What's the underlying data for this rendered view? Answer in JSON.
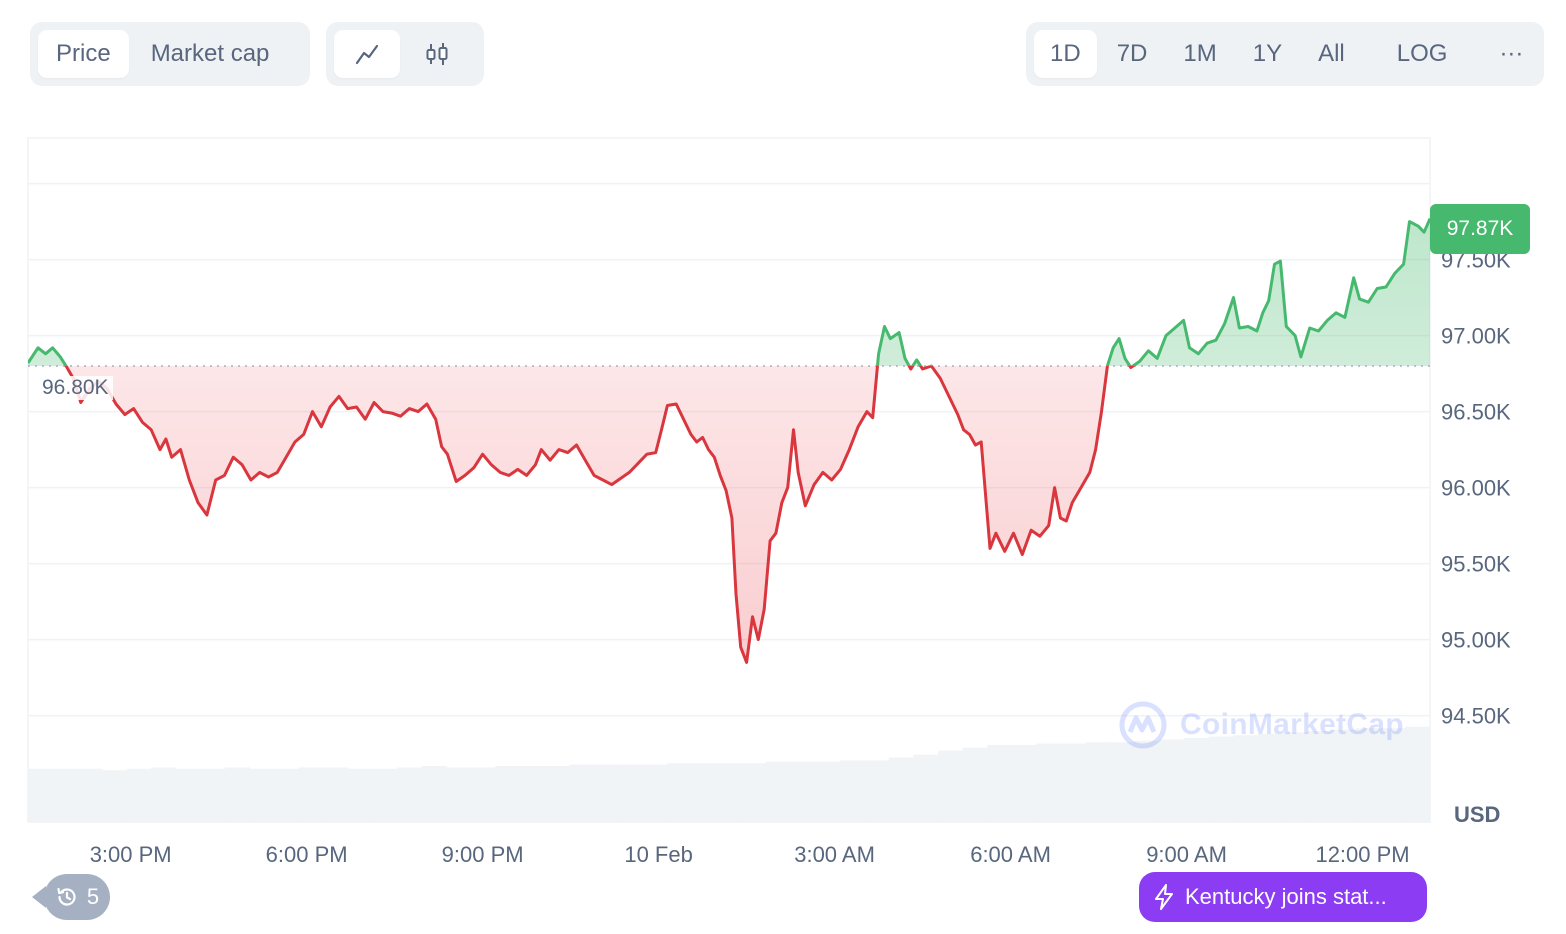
{
  "toolbar": {
    "metric_tabs": [
      {
        "label": "Price",
        "active": true
      },
      {
        "label": "Market cap",
        "active": false
      }
    ],
    "chart_type_icons": [
      "line-chart-icon",
      "candlestick-icon"
    ],
    "ranges": [
      {
        "label": "1D",
        "active": true
      },
      {
        "label": "7D",
        "active": false
      },
      {
        "label": "1M",
        "active": false
      },
      {
        "label": "1Y",
        "active": false
      },
      {
        "label": "All",
        "active": false
      }
    ],
    "log_label": "LOG",
    "more_label": "···"
  },
  "badges": {
    "current_price": "97.87K",
    "baseline": "96.80K",
    "currency": "USD"
  },
  "history": {
    "count": "5",
    "icon": "history-clock-icon"
  },
  "news": {
    "text": "Kentucky joins stat...",
    "icon": "lightning-icon"
  },
  "watermark": {
    "text": "CoinMarketCap",
    "icon": "coinmarketcap-logo"
  },
  "colors": {
    "up": "#47b96e",
    "down": "#d9363e",
    "up_fill": "#47b96e",
    "down_fill": "#ea3943",
    "grid": "#eff2f5",
    "news": "#8c3cf2"
  },
  "chart_data": {
    "type": "line",
    "title": "",
    "xlabel": "",
    "ylabel": "USD",
    "baseline": 96800,
    "ylim": [
      93800,
      98300
    ],
    "y_ticks": [
      {
        "value": 97500,
        "label": "97.50K"
      },
      {
        "value": 97000,
        "label": "97.00K"
      },
      {
        "value": 96500,
        "label": "96.50K"
      },
      {
        "value": 96000,
        "label": "96.00K"
      },
      {
        "value": 95500,
        "label": "95.50K"
      },
      {
        "value": 95000,
        "label": "95.00K"
      },
      {
        "value": 94500,
        "label": "94.50K"
      }
    ],
    "x_ticks": [
      {
        "hours": 1.0,
        "label": "3:00 PM"
      },
      {
        "hours": 4.0,
        "label": "6:00 PM"
      },
      {
        "hours": 7.0,
        "label": "9:00 PM"
      },
      {
        "hours": 10.0,
        "label": "10 Feb"
      },
      {
        "hours": 13.0,
        "label": "3:00 AM"
      },
      {
        "hours": 16.0,
        "label": "6:00 AM"
      },
      {
        "hours": 19.0,
        "label": "9:00 AM"
      },
      {
        "hours": 22.0,
        "label": "12:00 PM"
      }
    ],
    "xlim": [
      -0.75,
      23.15
    ],
    "series": [
      {
        "points": [
          [
            -0.75,
            96820
          ],
          [
            -0.58,
            96920
          ],
          [
            -0.45,
            96880
          ],
          [
            -0.33,
            96920
          ],
          [
            -0.2,
            96860
          ],
          [
            -0.1,
            96800
          ],
          [
            0.02,
            96720
          ],
          [
            0.15,
            96560
          ],
          [
            0.3,
            96650
          ],
          [
            0.45,
            96700
          ],
          [
            0.6,
            96650
          ],
          [
            0.75,
            96550
          ],
          [
            0.9,
            96480
          ],
          [
            1.05,
            96520
          ],
          [
            1.2,
            96430
          ],
          [
            1.35,
            96380
          ],
          [
            1.5,
            96250
          ],
          [
            1.6,
            96320
          ],
          [
            1.7,
            96200
          ],
          [
            1.85,
            96250
          ],
          [
            2.0,
            96050
          ],
          [
            2.15,
            95900
          ],
          [
            2.3,
            95820
          ],
          [
            2.45,
            96050
          ],
          [
            2.6,
            96080
          ],
          [
            2.75,
            96200
          ],
          [
            2.9,
            96150
          ],
          [
            3.05,
            96050
          ],
          [
            3.2,
            96100
          ],
          [
            3.35,
            96070
          ],
          [
            3.5,
            96100
          ],
          [
            3.65,
            96200
          ],
          [
            3.8,
            96300
          ],
          [
            3.95,
            96350
          ],
          [
            4.1,
            96500
          ],
          [
            4.25,
            96400
          ],
          [
            4.4,
            96530
          ],
          [
            4.55,
            96600
          ],
          [
            4.7,
            96520
          ],
          [
            4.85,
            96530
          ],
          [
            5.0,
            96450
          ],
          [
            5.15,
            96560
          ],
          [
            5.3,
            96500
          ],
          [
            5.45,
            96490
          ],
          [
            5.6,
            96470
          ],
          [
            5.75,
            96520
          ],
          [
            5.9,
            96500
          ],
          [
            6.05,
            96550
          ],
          [
            6.2,
            96450
          ],
          [
            6.3,
            96270
          ],
          [
            6.4,
            96220
          ],
          [
            6.55,
            96040
          ],
          [
            6.7,
            96080
          ],
          [
            6.85,
            96130
          ],
          [
            7.0,
            96220
          ],
          [
            7.15,
            96150
          ],
          [
            7.3,
            96100
          ],
          [
            7.45,
            96080
          ],
          [
            7.6,
            96120
          ],
          [
            7.75,
            96080
          ],
          [
            7.9,
            96150
          ],
          [
            8.0,
            96250
          ],
          [
            8.15,
            96180
          ],
          [
            8.3,
            96250
          ],
          [
            8.45,
            96230
          ],
          [
            8.6,
            96280
          ],
          [
            8.75,
            96180
          ],
          [
            8.9,
            96080
          ],
          [
            9.05,
            96050
          ],
          [
            9.2,
            96020
          ],
          [
            9.35,
            96060
          ],
          [
            9.5,
            96100
          ],
          [
            9.65,
            96160
          ],
          [
            9.8,
            96220
          ],
          [
            9.95,
            96230
          ],
          [
            10.05,
            96380
          ],
          [
            10.15,
            96540
          ],
          [
            10.3,
            96550
          ],
          [
            10.45,
            96430
          ],
          [
            10.55,
            96350
          ],
          [
            10.65,
            96300
          ],
          [
            10.75,
            96330
          ],
          [
            10.85,
            96250
          ],
          [
            10.95,
            96200
          ],
          [
            11.05,
            96080
          ],
          [
            11.15,
            95980
          ],
          [
            11.25,
            95800
          ],
          [
            11.32,
            95300
          ],
          [
            11.4,
            94950
          ],
          [
            11.5,
            94850
          ],
          [
            11.6,
            95150
          ],
          [
            11.7,
            95000
          ],
          [
            11.8,
            95200
          ],
          [
            11.9,
            95650
          ],
          [
            12.0,
            95700
          ],
          [
            12.1,
            95900
          ],
          [
            12.2,
            96000
          ],
          [
            12.3,
            96380
          ],
          [
            12.38,
            96100
          ],
          [
            12.5,
            95880
          ],
          [
            12.65,
            96020
          ],
          [
            12.8,
            96100
          ],
          [
            12.95,
            96050
          ],
          [
            13.1,
            96120
          ],
          [
            13.25,
            96250
          ],
          [
            13.4,
            96400
          ],
          [
            13.55,
            96500
          ],
          [
            13.65,
            96460
          ],
          [
            13.75,
            96880
          ],
          [
            13.85,
            97060
          ],
          [
            13.95,
            96980
          ],
          [
            14.1,
            97020
          ],
          [
            14.2,
            96850
          ],
          [
            14.3,
            96780
          ],
          [
            14.4,
            96840
          ],
          [
            14.5,
            96780
          ],
          [
            14.65,
            96800
          ],
          [
            14.8,
            96720
          ],
          [
            14.95,
            96600
          ],
          [
            15.1,
            96480
          ],
          [
            15.2,
            96380
          ],
          [
            15.3,
            96350
          ],
          [
            15.4,
            96280
          ],
          [
            15.5,
            96300
          ],
          [
            15.65,
            95600
          ],
          [
            15.75,
            95700
          ],
          [
            15.9,
            95580
          ],
          [
            16.05,
            95700
          ],
          [
            16.2,
            95560
          ],
          [
            16.35,
            95720
          ],
          [
            16.5,
            95680
          ],
          [
            16.65,
            95750
          ],
          [
            16.75,
            96000
          ],
          [
            16.85,
            95800
          ],
          [
            16.95,
            95780
          ],
          [
            17.05,
            95900
          ],
          [
            17.2,
            96000
          ],
          [
            17.35,
            96100
          ],
          [
            17.45,
            96250
          ],
          [
            17.55,
            96500
          ],
          [
            17.65,
            96800
          ],
          [
            17.75,
            96920
          ],
          [
            17.85,
            96980
          ],
          [
            17.95,
            96850
          ],
          [
            18.05,
            96790
          ],
          [
            18.2,
            96830
          ],
          [
            18.35,
            96900
          ],
          [
            18.5,
            96850
          ],
          [
            18.65,
            97000
          ],
          [
            18.8,
            97050
          ],
          [
            18.95,
            97100
          ],
          [
            19.05,
            96920
          ],
          [
            19.2,
            96880
          ],
          [
            19.35,
            96950
          ],
          [
            19.5,
            96970
          ],
          [
            19.65,
            97080
          ],
          [
            19.8,
            97250
          ],
          [
            19.9,
            97050
          ],
          [
            20.05,
            97060
          ],
          [
            20.2,
            97030
          ],
          [
            20.3,
            97150
          ],
          [
            20.4,
            97230
          ],
          [
            20.5,
            97470
          ],
          [
            20.6,
            97490
          ],
          [
            20.7,
            97060
          ],
          [
            20.85,
            97000
          ],
          [
            20.95,
            96860
          ],
          [
            21.1,
            97050
          ],
          [
            21.25,
            97030
          ],
          [
            21.4,
            97100
          ],
          [
            21.55,
            97150
          ],
          [
            21.7,
            97120
          ],
          [
            21.85,
            97380
          ],
          [
            21.95,
            97240
          ],
          [
            22.1,
            97220
          ],
          [
            22.25,
            97310
          ],
          [
            22.4,
            97320
          ],
          [
            22.55,
            97410
          ],
          [
            22.7,
            97470
          ],
          [
            22.8,
            97750
          ],
          [
            22.95,
            97720
          ],
          [
            23.05,
            97680
          ],
          [
            23.15,
            97770
          ]
        ]
      }
    ],
    "volume": {
      "x_start": -0.75,
      "x_end": 23.15,
      "values": [
        38,
        38,
        38,
        37,
        38,
        39,
        38,
        38,
        39,
        38,
        38,
        39,
        39,
        38,
        38,
        39,
        40,
        39,
        39,
        40,
        40,
        40,
        41,
        41,
        41,
        41,
        42,
        42,
        42,
        42,
        43,
        43,
        43,
        44,
        44,
        46,
        48,
        51,
        53,
        55,
        55,
        56,
        56,
        57,
        57,
        58,
        59,
        60,
        61,
        62,
        63,
        64,
        65,
        66,
        67,
        67,
        68
      ]
    }
  }
}
